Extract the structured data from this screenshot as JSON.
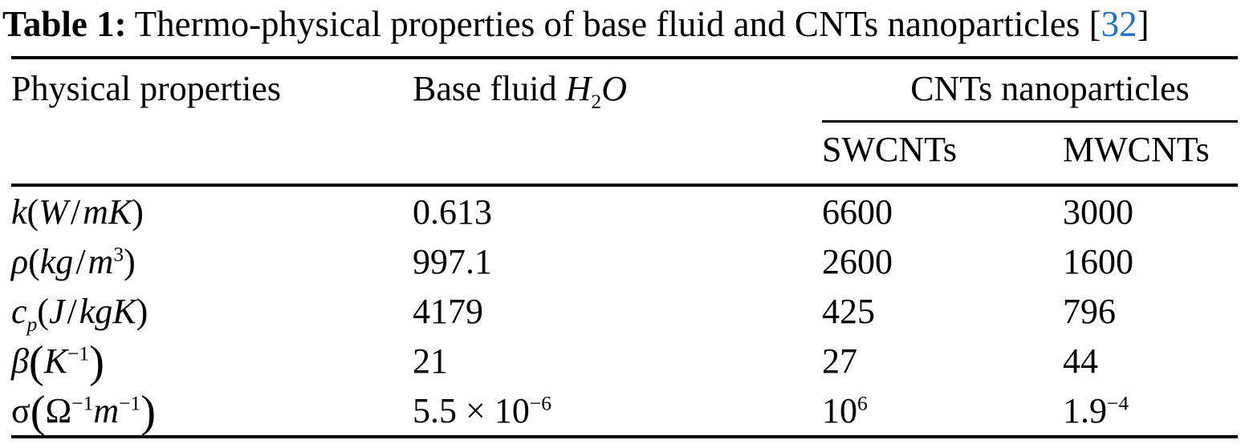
{
  "colors": {
    "text": "#000000",
    "accent_citation": "#2170d0",
    "background": "#ffffff"
  },
  "caption": {
    "label": "Table 1:",
    "text": "Thermo-physical properties of base fluid and CNTs nanoparticles",
    "cite_open": " [",
    "cite": "32",
    "cite_close": "]"
  },
  "table": {
    "header": {
      "col1": "Physical properties",
      "base_fluid_text": "Base fluid ",
      "base_fluid_formula": {
        "h": "H",
        "sub": "2",
        "o": "O"
      },
      "group": "CNTs nanoparticles",
      "sub1": "SWCNTs",
      "sub2": "MWCNTs"
    },
    "rows": [
      {
        "property": {
          "sym": "k",
          "open": "(",
          "u1": "W",
          "slash": "/",
          "u2": "mK",
          "close": ")"
        },
        "base": {
          "main": "0.613"
        },
        "swcnt": {
          "main": "6600"
        },
        "mwcnt": {
          "main": "3000"
        }
      },
      {
        "property": {
          "sym": "ρ",
          "open": "(",
          "u1": "kg",
          "slash": "/",
          "u2": "m",
          "sup": "3",
          "close": ")"
        },
        "base": {
          "main": "997.1"
        },
        "swcnt": {
          "main": "2600"
        },
        "mwcnt": {
          "main": "1600"
        }
      },
      {
        "property": {
          "sym": "c",
          "sub": "p",
          "open": "(",
          "u1": "J",
          "slash": "/",
          "u2": "kgK",
          "close": ")"
        },
        "base": {
          "main": "4179"
        },
        "swcnt": {
          "main": "425"
        },
        "mwcnt": {
          "main": "796"
        }
      },
      {
        "property": {
          "sym": "β",
          "open": "(",
          "u1": "K",
          "sup": "−1",
          "close": ")"
        },
        "base": {
          "main": "21"
        },
        "swcnt": {
          "main": "27"
        },
        "mwcnt": {
          "main": "44"
        }
      },
      {
        "property": {
          "sym": "σ",
          "open": "(",
          "u1": "Ω",
          "sup1": "−1",
          "u2": "m",
          "sup2": "−1",
          "close": ")"
        },
        "base": {
          "main": "5.5 × 10",
          "sup": "−6"
        },
        "swcnt": {
          "main": "10",
          "sup": "6"
        },
        "mwcnt": {
          "main": "1.9",
          "sup": "−4"
        }
      }
    ]
  }
}
